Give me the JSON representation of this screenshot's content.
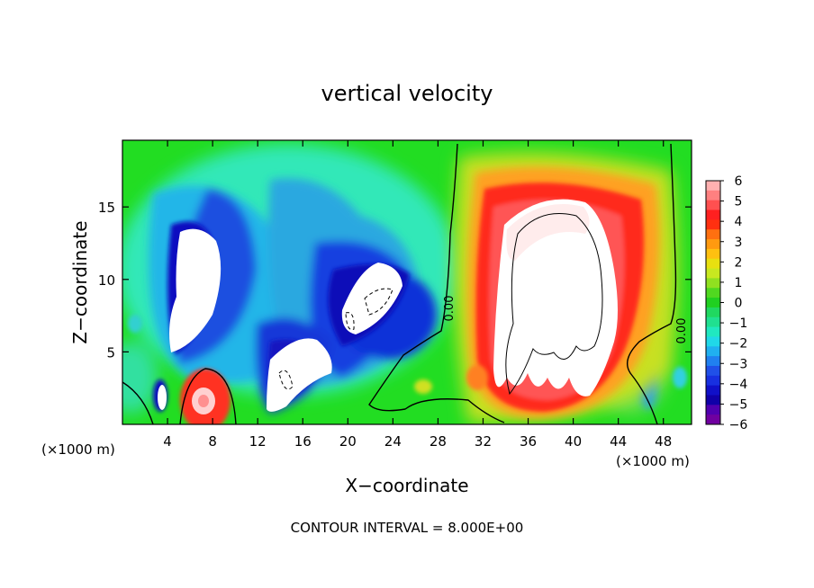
{
  "chart_data": {
    "type": "heatmap",
    "title": "vertical velocity",
    "xlabel": "X−coordinate",
    "ylabel": "Z−coordinate",
    "x_unit_left": "(×1000 m)",
    "x_unit_right": "(×1000 m)",
    "xlim": [
      0,
      50.5
    ],
    "ylim": [
      0,
      19.6
    ],
    "xticks": [
      "4",
      "8",
      "12",
      "16",
      "20",
      "24",
      "28",
      "32",
      "36",
      "40",
      "44",
      "48"
    ],
    "yticks": [
      "5",
      "10",
      "15"
    ],
    "colorbar": {
      "labels": [
        "6",
        "5",
        "4",
        "3",
        "2",
        "1",
        "0",
        "−1",
        "−2",
        "−3",
        "−4",
        "−5",
        "−6"
      ],
      "range": [
        -6,
        6
      ]
    },
    "contour_labels": [
      "0.00",
      "0.00"
    ],
    "footnote": "CONTOUR INTERVAL = 8.000E+00",
    "features": [
      {
        "kind": "downdraft",
        "x": 6.2,
        "z": 10.5,
        "value": -8
      },
      {
        "kind": "downdraft",
        "x": 22.0,
        "z": 8.5,
        "value": -7
      },
      {
        "kind": "downdraft",
        "x": 15.0,
        "z": 3.0,
        "value": -6
      },
      {
        "kind": "updraft",
        "x": 37.5,
        "z": 8.0,
        "value": 16
      },
      {
        "kind": "updraft",
        "x": 7.3,
        "z": 1.5,
        "value": 6
      }
    ]
  }
}
